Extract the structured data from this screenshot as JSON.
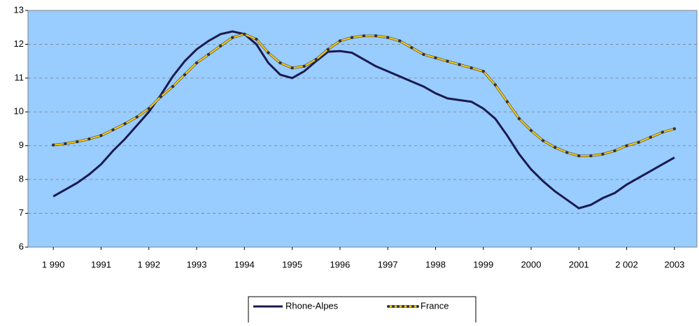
{
  "chart_data": {
    "type": "line",
    "x": [
      1990,
      1990.25,
      1990.5,
      1990.75,
      1991,
      1991.25,
      1991.5,
      1991.75,
      1992,
      1992.25,
      1992.5,
      1992.75,
      1993,
      1993.25,
      1993.5,
      1993.75,
      1994,
      1994.25,
      1994.5,
      1994.75,
      1995,
      1995.25,
      1995.5,
      1995.75,
      1996,
      1996.25,
      1996.5,
      1996.75,
      1997,
      1997.25,
      1997.5,
      1997.75,
      1998,
      1998.25,
      1998.5,
      1998.75,
      1999,
      1999.25,
      1999.5,
      1999.75,
      2000,
      2000.25,
      2000.5,
      2000.75,
      2001,
      2001.25,
      2001.5,
      2001.75,
      2002,
      2002.25,
      2002.5,
      2002.75,
      2003
    ],
    "series": [
      {
        "name": "Rhone-Alpes",
        "color": "#1a1a4e",
        "markers": false,
        "values": [
          7.5,
          7.7,
          7.9,
          8.15,
          8.45,
          8.85,
          9.2,
          9.6,
          10.0,
          10.5,
          11.05,
          11.5,
          11.85,
          12.1,
          12.3,
          12.38,
          12.3,
          12.0,
          11.45,
          11.1,
          11.0,
          11.2,
          11.5,
          11.78,
          11.8,
          11.75,
          11.55,
          11.35,
          11.2,
          11.05,
          10.9,
          10.75,
          10.55,
          10.4,
          10.35,
          10.3,
          10.1,
          9.8,
          9.3,
          8.75,
          8.3,
          7.95,
          7.65,
          7.4,
          7.15,
          7.25,
          7.45,
          7.6,
          7.85,
          8.05,
          8.25,
          8.45,
          8.65
        ]
      },
      {
        "name": "France",
        "color": "#ffcc00",
        "marker_color": "#333333",
        "markers": true,
        "values": [
          9.02,
          9.06,
          9.12,
          9.2,
          9.3,
          9.47,
          9.65,
          9.85,
          10.1,
          10.45,
          10.75,
          11.1,
          11.45,
          11.7,
          11.95,
          12.2,
          12.3,
          12.15,
          11.75,
          11.45,
          11.3,
          11.35,
          11.55,
          11.85,
          12.1,
          12.2,
          12.25,
          12.25,
          12.2,
          12.1,
          11.9,
          11.7,
          11.6,
          11.5,
          11.4,
          11.3,
          11.2,
          10.8,
          10.3,
          9.8,
          9.45,
          9.15,
          8.95,
          8.8,
          8.7,
          8.7,
          8.75,
          8.85,
          9.0,
          9.1,
          9.25,
          9.4,
          9.5
        ]
      }
    ],
    "xlim": [
      1989.47,
      2003.47
    ],
    "xticks": [
      {
        "value": 1990,
        "label": "1 990"
      },
      1991,
      {
        "value": 1992,
        "label": "1 992"
      },
      1993,
      1994,
      1995,
      1996,
      1997,
      1998,
      1999,
      2000,
      2001,
      {
        "value": 2002,
        "label": "2 002"
      },
      2003
    ],
    "ylim": [
      6,
      13
    ],
    "yticks": [
      6,
      7,
      8,
      9,
      10,
      11,
      12,
      13
    ],
    "grid": true,
    "plot_background": "#99ccff",
    "legend_position": "bottom"
  }
}
